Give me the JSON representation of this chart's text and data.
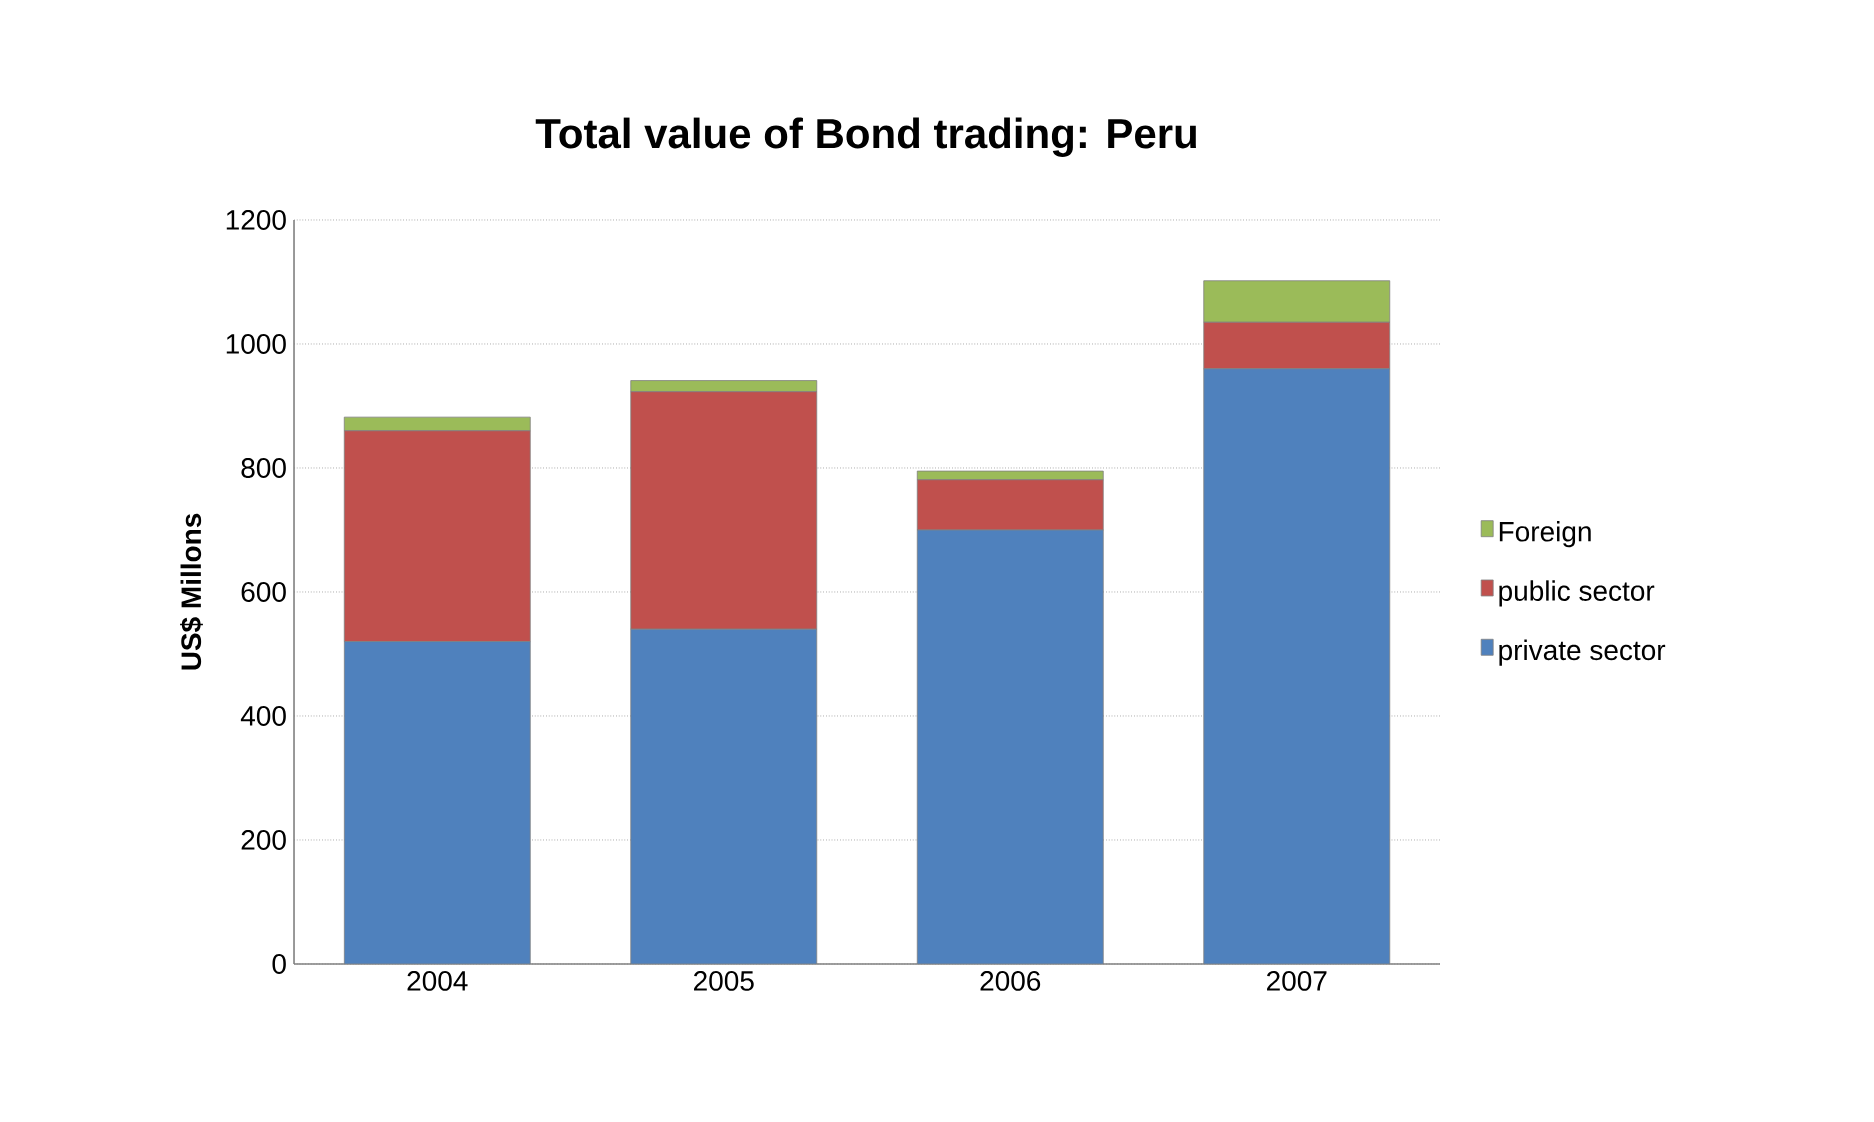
{
  "chart_data": {
    "type": "bar",
    "title": "Total value of Bond trading: Peru",
    "ylabel": "US$ Millons",
    "categories": [
      "2004",
      "2005",
      "2006",
      "2007"
    ],
    "stacked": true,
    "ylim": [
      0,
      1200
    ],
    "yticks": [
      0,
      200,
      400,
      600,
      800,
      1000,
      1200
    ],
    "grid": "y",
    "legend": "right",
    "series": [
      {
        "name": "private sector",
        "color": "#4f81bd",
        "values": [
          520,
          540,
          700,
          960
        ]
      },
      {
        "name": "public sector",
        "color": "#c0504d",
        "values": [
          340,
          383,
          81,
          75
        ]
      },
      {
        "name": "Foreign",
        "color": "#9bbb59",
        "values": [
          22,
          18,
          14,
          67
        ]
      }
    ]
  }
}
